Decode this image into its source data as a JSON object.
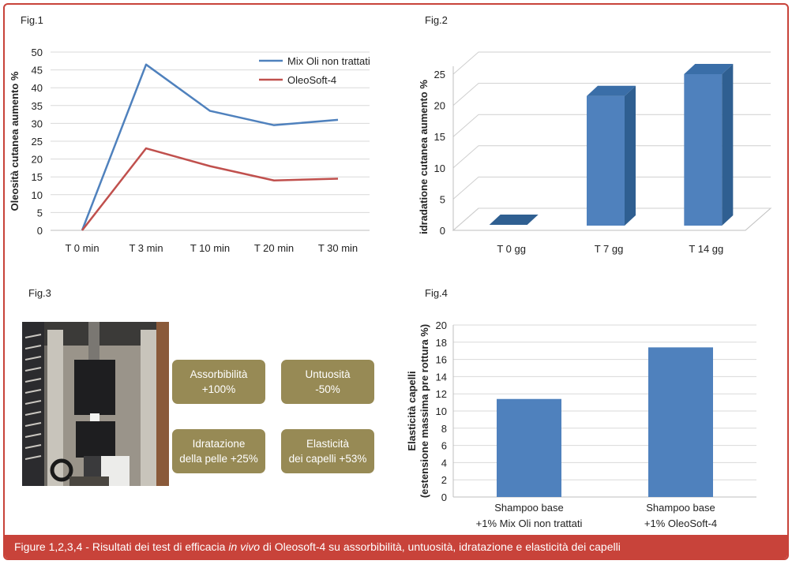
{
  "caption": {
    "prefix": "Figure 1,2,3,4 - Risultati dei test di efficacia ",
    "italic": "in vivo",
    "suffix": " di Oleosoft-4 su assorbibilità, untuosità, idratazione e elasticità dei capelli"
  },
  "photo_legend": "",
  "colors": {
    "frame": "#c8433a",
    "blue": "#4f81bd",
    "red": "#c0504d",
    "bar": "#4f81bd",
    "bar_dark": "#2f5f91",
    "pill": "#978a55"
  },
  "chart_data": [
    {
      "id": "fig1",
      "figure_label": "Fig.1",
      "type": "line",
      "categories": [
        "T 0 min",
        "T 3 min",
        "T 10 min",
        "T 20 min",
        "T 30 min"
      ],
      "series": [
        {
          "name": "Mix Oli non trattati",
          "values": [
            0,
            46.5,
            33.5,
            29.5,
            31
          ]
        },
        {
          "name": "OleoSoft-4",
          "values": [
            0,
            23,
            18,
            14,
            14.5
          ]
        }
      ],
      "yticks": [
        "0",
        "5",
        "10",
        "15",
        "20",
        "25",
        "30",
        "35",
        "40",
        "45",
        "50"
      ],
      "ylim": [
        0,
        50
      ],
      "ylabel": "Oleosità cutanea aumento %",
      "xlabel": "",
      "legend": "top-right",
      "grid": true
    },
    {
      "id": "fig2",
      "figure_label": "Fig.2",
      "type": "bar",
      "style": "3d",
      "categories": [
        "T 0 gg",
        "T 7 gg",
        "T 14 gg"
      ],
      "values": [
        0,
        21.5,
        25
      ],
      "yticks": [
        "0",
        "5",
        "10",
        "15",
        "20",
        "25"
      ],
      "ylim": [
        0,
        25
      ],
      "ylabel": "idradatione cutanea aumento %",
      "xlabel": "",
      "grid": true
    },
    {
      "id": "fig3",
      "figure_label": "Fig.3",
      "type": "table",
      "cells": [
        {
          "title": "Assorbibilità",
          "value": "+100%"
        },
        {
          "title": "Untuosità",
          "value": "-50%"
        },
        {
          "title": "Idratazione",
          "value": "della pelle +25%"
        },
        {
          "title": "Elasticità",
          "value": "dei capelli +53%"
        }
      ]
    },
    {
      "id": "fig4",
      "figure_label": "Fig.4",
      "type": "bar",
      "categories": [
        {
          "line1": "Shampoo base",
          "line2": "+1% Mix Oli non trattati"
        },
        {
          "line1": "Shampoo base",
          "line2": "+1% OleoSoft-4"
        }
      ],
      "values": [
        11.4,
        17.4
      ],
      "yticks": [
        "0",
        "2",
        "4",
        "6",
        "8",
        "10",
        "12",
        "14",
        "16",
        "18",
        "20"
      ],
      "ylim": [
        0,
        20
      ],
      "ylabel_line1": "Elasticità capelli",
      "ylabel_line2": "(estensione massima pre rottura %)",
      "xlabel": "",
      "grid": true
    }
  ]
}
